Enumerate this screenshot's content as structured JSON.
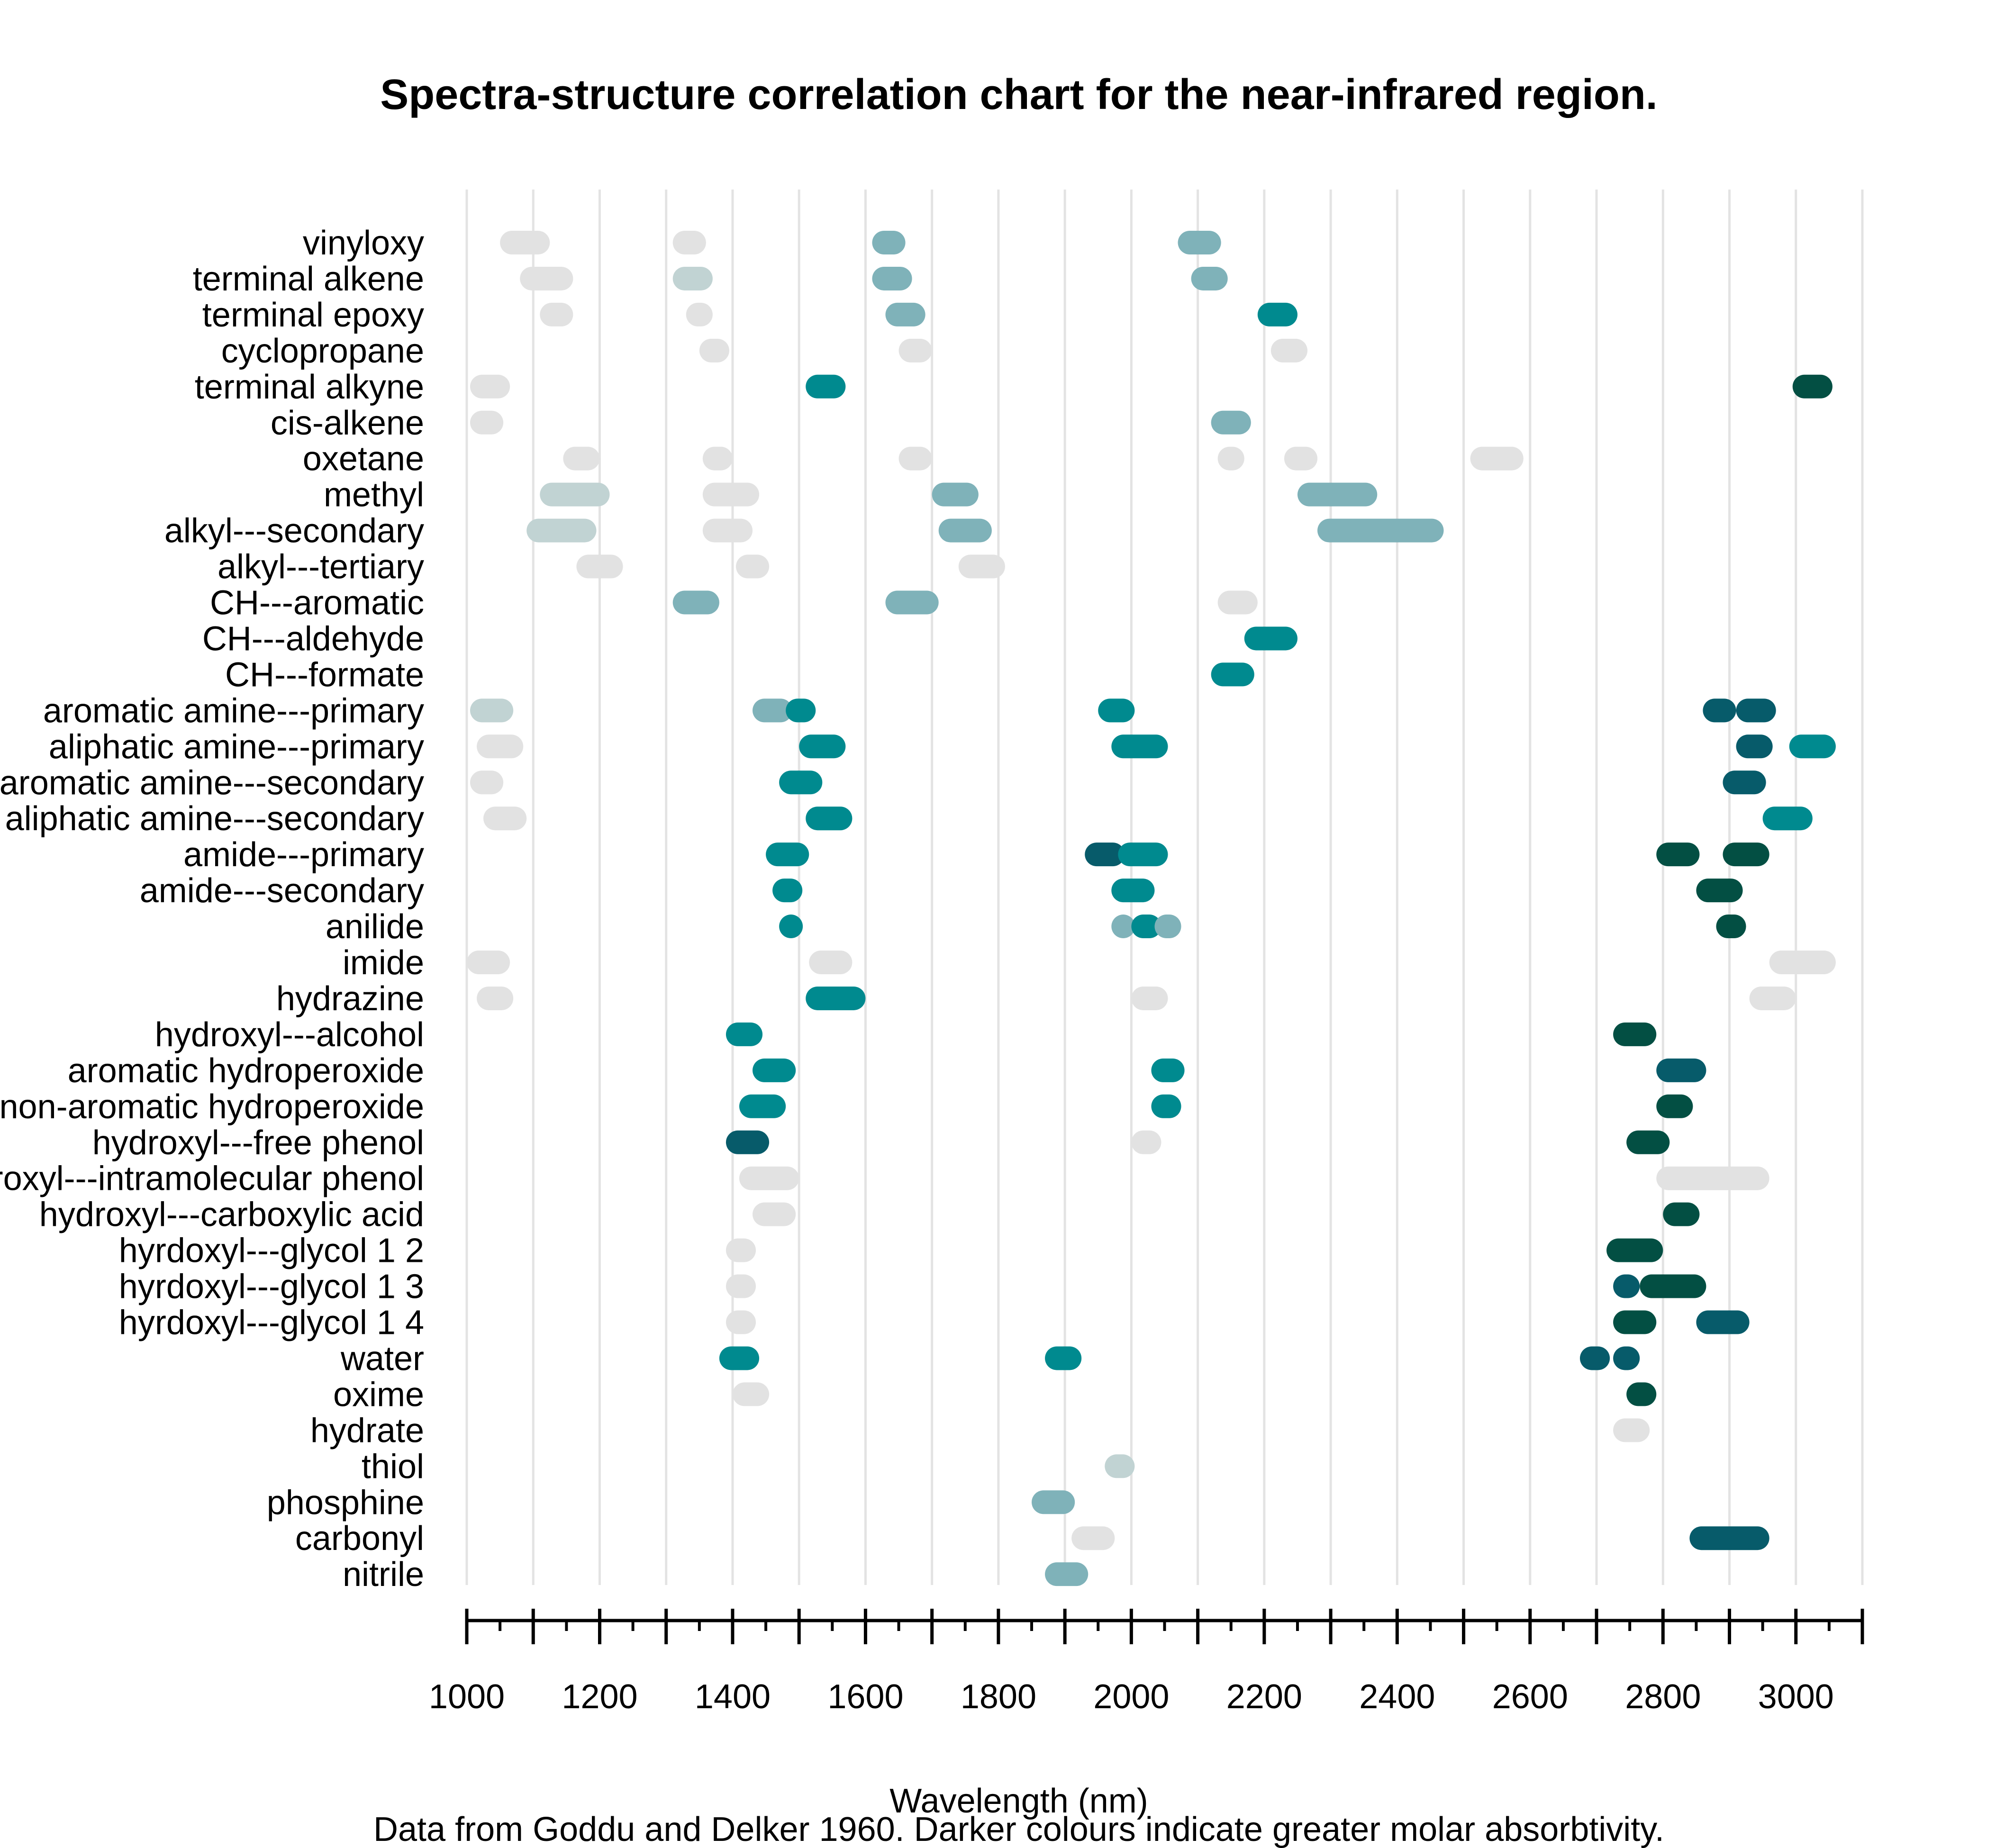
{
  "chart_data": {
    "type": "range-bar",
    "title": "Spectra-structure correlation chart for the near-infrared region.",
    "xlabel": "Wavelength (nm)",
    "caption": "Data from Goddu and Delker 1960. Darker colours indicate greater molar absorbtivity.",
    "xlim": [
      1000,
      3100
    ],
    "xticks": [
      1000,
      1200,
      1400,
      1600,
      1800,
      2000,
      2200,
      2400,
      2600,
      2800,
      3000
    ],
    "grid": true,
    "colors": {
      "0": "#e2e2e2",
      "1": "#c1d3d3",
      "2": "#7fb2b9",
      "3": "#008a8f",
      "4": "#075b6a",
      "5": "#034f43"
    },
    "rows": [
      {
        "label": "vinyloxy",
        "bands": [
          [
            1050,
            1125,
            0
          ],
          [
            1310,
            1360,
            0
          ],
          [
            1610,
            1660,
            2
          ],
          [
            2070,
            2135,
            2
          ]
        ]
      },
      {
        "label": "terminal alkene",
        "bands": [
          [
            1080,
            1160,
            0
          ],
          [
            1310,
            1370,
            1
          ],
          [
            1610,
            1670,
            2
          ],
          [
            2090,
            2145,
            2
          ]
        ]
      },
      {
        "label": "terminal epoxy",
        "bands": [
          [
            1110,
            1160,
            0
          ],
          [
            1330,
            1370,
            0
          ],
          [
            1630,
            1690,
            2
          ],
          [
            2190,
            2250,
            3
          ]
        ]
      },
      {
        "label": "cyclopropane",
        "bands": [
          [
            1350,
            1395,
            0
          ],
          [
            1650,
            1700,
            0
          ],
          [
            2210,
            2265,
            0
          ]
        ]
      },
      {
        "label": "terminal alkyne",
        "bands": [
          [
            1005,
            1065,
            0
          ],
          [
            1510,
            1570,
            3
          ],
          [
            2995,
            3055,
            5
          ]
        ]
      },
      {
        "label": "cis-alkene",
        "bands": [
          [
            1005,
            1055,
            0
          ],
          [
            2120,
            2180,
            2
          ]
        ]
      },
      {
        "label": "oxetane",
        "bands": [
          [
            1145,
            1200,
            0
          ],
          [
            1355,
            1400,
            0
          ],
          [
            1650,
            1700,
            0
          ],
          [
            2130,
            2170,
            0
          ],
          [
            2230,
            2280,
            0
          ],
          [
            2510,
            2590,
            0
          ]
        ]
      },
      {
        "label": "methyl",
        "bands": [
          [
            1110,
            1215,
            1
          ],
          [
            1355,
            1440,
            0
          ],
          [
            1700,
            1770,
            2
          ],
          [
            2250,
            2370,
            2
          ]
        ]
      },
      {
        "label": "alkyl---secondary",
        "bands": [
          [
            1090,
            1195,
            1
          ],
          [
            1355,
            1430,
            0
          ],
          [
            1710,
            1790,
            2
          ],
          [
            2280,
            2470,
            2
          ]
        ]
      },
      {
        "label": "alkyl---tertiary",
        "bands": [
          [
            1165,
            1235,
            0
          ],
          [
            1405,
            1455,
            0
          ],
          [
            1740,
            1810,
            0
          ]
        ]
      },
      {
        "label": "CH---aromatic",
        "bands": [
          [
            1310,
            1380,
            2
          ],
          [
            1630,
            1710,
            2
          ],
          [
            2130,
            2190,
            0
          ]
        ]
      },
      {
        "label": "CH---aldehyde",
        "bands": [
          [
            2170,
            2250,
            3
          ]
        ]
      },
      {
        "label": "CH---formate",
        "bands": [
          [
            2120,
            2185,
            3
          ]
        ]
      },
      {
        "label": "aromatic amine---primary",
        "bands": [
          [
            1005,
            1070,
            1
          ],
          [
            1430,
            1490,
            2
          ],
          [
            1480,
            1525,
            3
          ],
          [
            1950,
            2005,
            3
          ],
          [
            2860,
            2910,
            4
          ],
          [
            2910,
            2970,
            4
          ]
        ]
      },
      {
        "label": "aliphatic amine---primary",
        "bands": [
          [
            1015,
            1085,
            0
          ],
          [
            1500,
            1570,
            3
          ],
          [
            1970,
            2055,
            3
          ],
          [
            2910,
            2965,
            4
          ],
          [
            2990,
            3060,
            3
          ]
        ]
      },
      {
        "label": "aromatic amine---secondary",
        "bands": [
          [
            1005,
            1055,
            0
          ],
          [
            1470,
            1535,
            3
          ],
          [
            2890,
            2955,
            4
          ]
        ]
      },
      {
        "label": "aliphatic amine---secondary",
        "bands": [
          [
            1025,
            1090,
            0
          ],
          [
            1510,
            1580,
            3
          ],
          [
            2950,
            3025,
            3
          ]
        ]
      },
      {
        "label": "amide---primary",
        "bands": [
          [
            1450,
            1515,
            3
          ],
          [
            1930,
            1990,
            4
          ],
          [
            1980,
            2055,
            3
          ],
          [
            2790,
            2855,
            5
          ],
          [
            2890,
            2960,
            5
          ]
        ]
      },
      {
        "label": "amide---secondary",
        "bands": [
          [
            1460,
            1505,
            3
          ],
          [
            1970,
            2035,
            3
          ],
          [
            2850,
            2920,
            5
          ]
        ]
      },
      {
        "label": "anilide",
        "bands": [
          [
            1470,
            1505,
            3
          ],
          [
            1970,
            2005,
            2
          ],
          [
            2000,
            2045,
            3
          ],
          [
            2035,
            2075,
            2
          ],
          [
            2880,
            2925,
            5
          ]
        ]
      },
      {
        "label": "imide",
        "bands": [
          [
            1000,
            1065,
            0
          ],
          [
            1515,
            1580,
            0
          ],
          [
            2960,
            3060,
            0
          ]
        ]
      },
      {
        "label": "hydrazine",
        "bands": [
          [
            1015,
            1070,
            0
          ],
          [
            1510,
            1600,
            3
          ],
          [
            2000,
            2055,
            0
          ],
          [
            2930,
            3000,
            0
          ]
        ]
      },
      {
        "label": "hydroxyl---alcohol",
        "bands": [
          [
            1390,
            1445,
            3
          ],
          [
            2725,
            2790,
            5
          ]
        ]
      },
      {
        "label": "aromatic hydroperoxide",
        "bands": [
          [
            1430,
            1495,
            3
          ],
          [
            2030,
            2080,
            3
          ],
          [
            2790,
            2865,
            4
          ]
        ]
      },
      {
        "label": "non-aromatic hydroperoxide",
        "bands": [
          [
            1410,
            1480,
            3
          ],
          [
            2030,
            2075,
            3
          ],
          [
            2790,
            2845,
            5
          ]
        ]
      },
      {
        "label": "hydroxyl---free phenol",
        "bands": [
          [
            1390,
            1455,
            4
          ],
          [
            2000,
            2045,
            0
          ],
          [
            2745,
            2810,
            5
          ]
        ]
      },
      {
        "label": "hydroxyl---intramolecular phenol",
        "bands": [
          [
            1410,
            1500,
            0
          ],
          [
            2790,
            2960,
            0
          ]
        ]
      },
      {
        "label": "hydroxyl---carboxylic acid",
        "bands": [
          [
            1430,
            1495,
            0
          ],
          [
            2800,
            2855,
            5
          ]
        ]
      },
      {
        "label": "hyrdoxyl---glycol 1 2",
        "bands": [
          [
            1390,
            1435,
            0
          ],
          [
            2715,
            2800,
            5
          ]
        ]
      },
      {
        "label": "hyrdoxyl---glycol 1 3",
        "bands": [
          [
            1390,
            1435,
            0
          ],
          [
            2725,
            2765,
            4
          ],
          [
            2765,
            2865,
            5
          ]
        ]
      },
      {
        "label": "hyrdoxyl---glycol 1 4",
        "bands": [
          [
            1390,
            1435,
            0
          ],
          [
            2725,
            2790,
            5
          ],
          [
            2850,
            2930,
            4
          ]
        ]
      },
      {
        "label": "water",
        "bands": [
          [
            1380,
            1440,
            3
          ],
          [
            1870,
            1925,
            3
          ],
          [
            2675,
            2720,
            4
          ],
          [
            2725,
            2765,
            4
          ]
        ]
      },
      {
        "label": "oxime",
        "bands": [
          [
            1400,
            1455,
            0
          ],
          [
            2745,
            2790,
            5
          ]
        ]
      },
      {
        "label": "hydrate",
        "bands": [
          [
            2725,
            2780,
            0
          ]
        ]
      },
      {
        "label": "thiol",
        "bands": [
          [
            1960,
            2005,
            1
          ]
        ]
      },
      {
        "label": "phosphine",
        "bands": [
          [
            1850,
            1915,
            2
          ]
        ]
      },
      {
        "label": "carbonyl",
        "bands": [
          [
            1910,
            1975,
            0
          ],
          [
            2840,
            2960,
            4
          ]
        ]
      },
      {
        "label": "nitrile",
        "bands": [
          [
            1870,
            1935,
            2
          ]
        ]
      }
    ]
  }
}
